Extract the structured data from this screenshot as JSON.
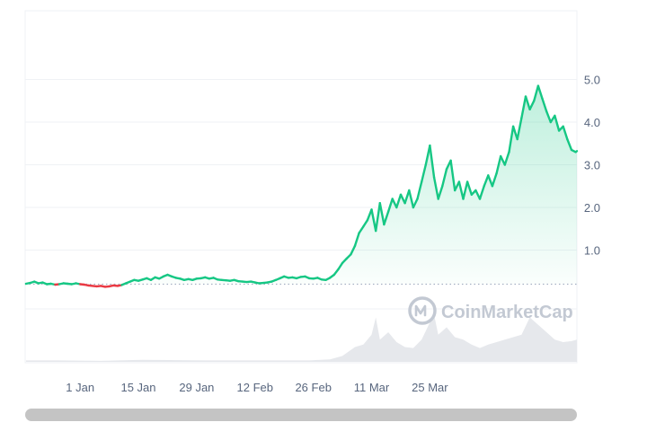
{
  "chart_data": {
    "type": "line",
    "x_ticks": [
      "1 Jan",
      "15 Jan",
      "29 Jan",
      "12 Feb",
      "26 Feb",
      "11 Mar",
      "25 Mar"
    ],
    "y_ticks": [
      "1.0",
      "2.0",
      "3.0",
      "4.0",
      "5.0"
    ],
    "ylim": [
      0,
      6
    ],
    "baseline": 0.2,
    "grid": true,
    "series": [
      {
        "points": [
          [
            -13,
            0.21
          ],
          [
            -12,
            0.23
          ],
          [
            -11,
            0.26
          ],
          [
            -10,
            0.22
          ],
          [
            -9,
            0.24
          ],
          [
            -8,
            0.2
          ],
          [
            -7,
            0.21
          ],
          [
            -6,
            0.19
          ],
          [
            -5,
            0.2
          ],
          [
            -4,
            0.22
          ],
          [
            -3,
            0.21
          ],
          [
            -2,
            0.2
          ],
          [
            -1,
            0.22
          ],
          [
            0,
            0.2
          ],
          [
            1,
            0.19
          ],
          [
            2,
            0.17
          ],
          [
            3,
            0.16
          ],
          [
            4,
            0.15
          ],
          [
            5,
            0.16
          ],
          [
            6,
            0.14
          ],
          [
            7,
            0.15
          ],
          [
            8,
            0.17
          ],
          [
            9,
            0.16
          ],
          [
            10,
            0.18
          ],
          [
            11,
            0.22
          ],
          [
            12,
            0.26
          ],
          [
            13,
            0.3
          ],
          [
            14,
            0.28
          ],
          [
            15,
            0.31
          ],
          [
            16,
            0.34
          ],
          [
            17,
            0.3
          ],
          [
            18,
            0.36
          ],
          [
            19,
            0.33
          ],
          [
            20,
            0.38
          ],
          [
            21,
            0.42
          ],
          [
            22,
            0.38
          ],
          [
            23,
            0.35
          ],
          [
            24,
            0.33
          ],
          [
            25,
            0.3
          ],
          [
            26,
            0.32
          ],
          [
            27,
            0.3
          ],
          [
            28,
            0.33
          ],
          [
            29,
            0.34
          ],
          [
            30,
            0.36
          ],
          [
            31,
            0.33
          ],
          [
            32,
            0.35
          ],
          [
            33,
            0.31
          ],
          [
            34,
            0.3
          ],
          [
            35,
            0.29
          ],
          [
            36,
            0.28
          ],
          [
            37,
            0.3
          ],
          [
            38,
            0.27
          ],
          [
            39,
            0.26
          ],
          [
            40,
            0.25
          ],
          [
            41,
            0.26
          ],
          [
            42,
            0.24
          ],
          [
            43,
            0.22
          ],
          [
            44,
            0.23
          ],
          [
            45,
            0.24
          ],
          [
            46,
            0.26
          ],
          [
            47,
            0.3
          ],
          [
            48,
            0.34
          ],
          [
            49,
            0.38
          ],
          [
            50,
            0.35
          ],
          [
            51,
            0.36
          ],
          [
            52,
            0.34
          ],
          [
            53,
            0.37
          ],
          [
            54,
            0.38
          ],
          [
            55,
            0.34
          ],
          [
            56,
            0.33
          ],
          [
            57,
            0.35
          ],
          [
            58,
            0.31
          ],
          [
            59,
            0.3
          ],
          [
            60,
            0.35
          ],
          [
            61,
            0.42
          ],
          [
            62,
            0.55
          ],
          [
            63,
            0.7
          ],
          [
            64,
            0.8
          ],
          [
            65,
            0.9
          ],
          [
            66,
            1.1
          ],
          [
            67,
            1.4
          ],
          [
            68,
            1.55
          ],
          [
            69,
            1.7
          ],
          [
            70,
            1.95
          ],
          [
            71,
            1.45
          ],
          [
            72,
            2.1
          ],
          [
            73,
            1.6
          ],
          [
            74,
            1.9
          ],
          [
            75,
            2.2
          ],
          [
            76,
            2.0
          ],
          [
            77,
            2.3
          ],
          [
            78,
            2.1
          ],
          [
            79,
            2.4
          ],
          [
            80,
            2.0
          ],
          [
            81,
            2.2
          ],
          [
            82,
            2.6
          ],
          [
            83,
            3.0
          ],
          [
            84,
            3.45
          ],
          [
            85,
            2.7
          ],
          [
            86,
            2.2
          ],
          [
            87,
            2.5
          ],
          [
            88,
            2.9
          ],
          [
            89,
            3.1
          ],
          [
            90,
            2.4
          ],
          [
            91,
            2.6
          ],
          [
            92,
            2.2
          ],
          [
            93,
            2.6
          ],
          [
            94,
            2.3
          ],
          [
            95,
            2.4
          ],
          [
            96,
            2.2
          ],
          [
            97,
            2.5
          ],
          [
            98,
            2.75
          ],
          [
            99,
            2.5
          ],
          [
            100,
            2.8
          ],
          [
            101,
            3.2
          ],
          [
            102,
            3.0
          ],
          [
            103,
            3.3
          ],
          [
            104,
            3.9
          ],
          [
            105,
            3.6
          ],
          [
            106,
            4.1
          ],
          [
            107,
            4.6
          ],
          [
            108,
            4.3
          ],
          [
            109,
            4.5
          ],
          [
            110,
            4.85
          ],
          [
            111,
            4.55
          ],
          [
            112,
            4.25
          ],
          [
            113,
            4.0
          ],
          [
            114,
            4.15
          ],
          [
            115,
            3.8
          ],
          [
            116,
            3.9
          ],
          [
            117,
            3.6
          ],
          [
            118,
            3.35
          ],
          [
            119,
            3.3
          ],
          [
            119.3,
            3.32
          ]
        ]
      }
    ],
    "volume": [
      [
        -13,
        0.03
      ],
      [
        -5,
        0.03
      ],
      [
        5,
        0.02
      ],
      [
        15,
        0.04
      ],
      [
        30,
        0.03
      ],
      [
        45,
        0.03
      ],
      [
        55,
        0.03
      ],
      [
        60,
        0.05
      ],
      [
        63,
        0.12
      ],
      [
        66,
        0.3
      ],
      [
        68,
        0.35
      ],
      [
        70,
        0.55
      ],
      [
        71,
        0.9
      ],
      [
        72,
        0.45
      ],
      [
        74,
        0.6
      ],
      [
        76,
        0.4
      ],
      [
        78,
        0.3
      ],
      [
        80,
        0.28
      ],
      [
        82,
        0.45
      ],
      [
        84,
        0.8
      ],
      [
        85,
        0.95
      ],
      [
        86,
        0.55
      ],
      [
        88,
        0.7
      ],
      [
        90,
        0.5
      ],
      [
        92,
        0.45
      ],
      [
        94,
        0.35
      ],
      [
        96,
        0.28
      ],
      [
        98,
        0.35
      ],
      [
        100,
        0.4
      ],
      [
        102,
        0.45
      ],
      [
        104,
        0.5
      ],
      [
        106,
        0.55
      ],
      [
        108,
        0.9
      ],
      [
        110,
        0.75
      ],
      [
        112,
        0.6
      ],
      [
        114,
        0.45
      ],
      [
        116,
        0.4
      ],
      [
        118,
        0.42
      ],
      [
        119.3,
        0.45
      ]
    ],
    "colors": {
      "up": "#16c784",
      "down": "#ea3943",
      "grid": "#eff2f5",
      "axis_text": "#58667e",
      "watermark": "#c3c9d3"
    },
    "watermark": "CoinMarketCap"
  }
}
